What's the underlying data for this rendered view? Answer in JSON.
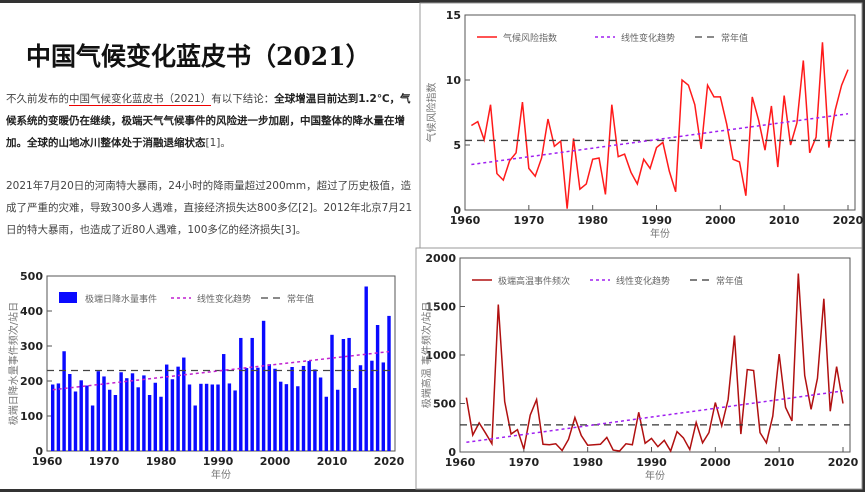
{
  "article": {
    "title": "中国气候变化蓝皮书（2021）",
    "p1_lead": "不久前发布的",
    "p1_link": "中国气候变化蓝皮书（2021）",
    "p1_mid": "有以下结论：",
    "p1_bold": "全球增温目前达到1.2℃，气候系统的变暖仍在继续，极端天气气候事件的风险进一步加剧，中国整体的降水量在增加。全球的山地冰川整体处于消融退缩状态",
    "p1_ref": "[1]。",
    "p2": "2021年7月20日的河南特大暴雨，24小时的降雨量超过200mm，超过了历史极值，造成了严重的灾难，导致300多人遇难，直接经济损失达800多亿[2]。2012年北京7月21日的特大暴雨，也造成了近80人遇难，100多亿的经济损失[3]。"
  },
  "chart_data": [
    {
      "id": "risk",
      "type": "line",
      "xlabel": "年份",
      "ylabel": "气候风险指数",
      "xlim": [
        1960,
        2020
      ],
      "ylim": [
        0,
        15
      ],
      "xticks": [
        1960,
        1970,
        1980,
        1990,
        2000,
        2010,
        2020
      ],
      "yticks": [
        0,
        5,
        10,
        15
      ],
      "x_start": 1961,
      "series": [
        {
          "name": "气候风险指数",
          "color": "#ff1a1a",
          "values": [
            6.5,
            6.8,
            5.4,
            8.1,
            2.8,
            2.3,
            3.8,
            4.4,
            8.3,
            3.2,
            2.6,
            4.0,
            7.0,
            4.9,
            5.3,
            0.1,
            5.5,
            1.6,
            2.0,
            3.9,
            4.0,
            1.2,
            8.1,
            4.1,
            4.3,
            2.9,
            2.0,
            3.9,
            3.2,
            4.8,
            5.2,
            3.0,
            1.4,
            10.0,
            9.6,
            8.1,
            4.7,
            9.6,
            8.7,
            8.7,
            6.6,
            3.9,
            3.7,
            1.1,
            8.7,
            6.9,
            4.6,
            8.0,
            3.3,
            8.8,
            5.0,
            6.7,
            11.5,
            4.4,
            5.6,
            12.9,
            4.8,
            7.7,
            9.6,
            10.8
          ]
        }
      ],
      "trend": {
        "name": "线性变化趋势",
        "color": "#a020f0",
        "from": [
          1961,
          3.5
        ],
        "to": [
          2020,
          7.4
        ]
      },
      "normal": {
        "name": "常年值",
        "color": "#444444",
        "value": 5.35
      }
    },
    {
      "id": "rain",
      "type": "bar",
      "xlabel": "年份",
      "ylabel": "极端日降水量事件频次/站日",
      "xlim": [
        1960,
        2020
      ],
      "ylim": [
        0,
        500
      ],
      "xticks": [
        1960,
        1970,
        1980,
        1990,
        2000,
        2010,
        2020
      ],
      "yticks": [
        0,
        100,
        200,
        300,
        400,
        500
      ],
      "x_start": 1961,
      "series": [
        {
          "name": "极端日降水量事件",
          "color": "#0a0aff",
          "values": [
            190,
            193,
            285,
            220,
            170,
            202,
            187,
            130,
            228,
            213,
            175,
            160,
            225,
            208,
            222,
            182,
            216,
            160,
            195,
            155,
            247,
            205,
            241,
            267,
            190,
            130,
            192,
            192,
            190,
            190,
            277,
            193,
            173,
            323,
            237,
            323,
            238,
            372,
            248,
            235,
            198,
            191,
            240,
            185,
            243,
            257,
            233,
            210,
            155,
            332,
            175,
            320,
            323,
            180,
            245,
            470,
            258,
            360,
            253,
            386
          ]
        }
      ],
      "trend": {
        "name": "线性变化趋势",
        "color": "#c020d0",
        "from": [
          1961,
          175
        ],
        "to": [
          2020,
          284
        ]
      },
      "normal": {
        "name": "常年值",
        "color": "#444444",
        "value": 230
      }
    },
    {
      "id": "heat",
      "type": "line",
      "xlabel": "年份",
      "ylabel": "极端高温 事件频次/站日",
      "xlim": [
        1960,
        2020
      ],
      "ylim": [
        0,
        2000
      ],
      "xticks": [
        1960,
        1970,
        1980,
        1990,
        2000,
        2010,
        2020
      ],
      "yticks": [
        0,
        500,
        1000,
        1500,
        2000
      ],
      "x_start": 1961,
      "series": [
        {
          "name": "极端高温事件频次",
          "color": "#b01010",
          "values": [
            560,
            175,
            300,
            195,
            85,
            1520,
            520,
            185,
            230,
            30,
            380,
            540,
            80,
            75,
            85,
            15,
            130,
            355,
            170,
            70,
            75,
            80,
            150,
            20,
            10,
            85,
            75,
            410,
            90,
            140,
            55,
            120,
            10,
            210,
            145,
            25,
            305,
            95,
            200,
            510,
            270,
            540,
            1200,
            185,
            850,
            840,
            200,
            95,
            370,
            1010,
            460,
            320,
            1840,
            790,
            440,
            760,
            1580,
            420,
            880,
            500
          ]
        }
      ],
      "trend": {
        "name": "线性变化趋势",
        "color": "#a020f0",
        "from": [
          1961,
          100
        ],
        "to": [
          2020,
          630
        ]
      },
      "normal": {
        "name": "常年值",
        "color": "#333333",
        "value": 280
      }
    }
  ]
}
